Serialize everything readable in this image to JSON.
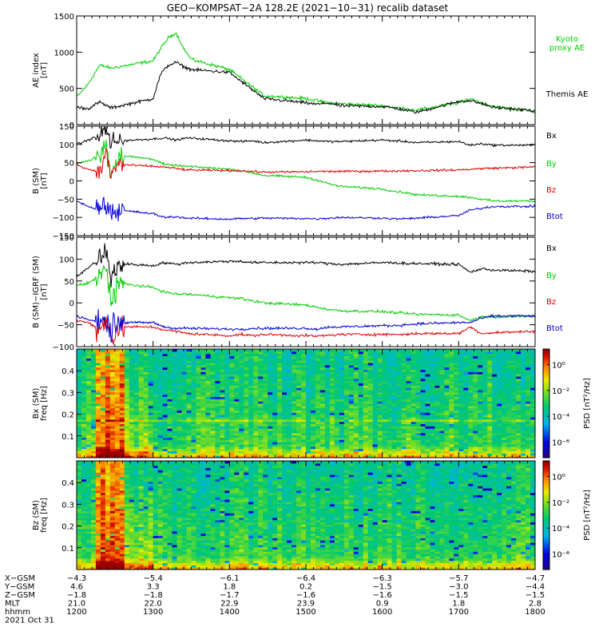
{
  "title": "GEO−KOMPSAT−2A 128.2E (2021−10−31) recalib dataset",
  "colors": {
    "black": "#000000",
    "green": "#00cc00",
    "red": "#dd0000",
    "blue": "#0000cc",
    "kyoto": "#22dd22"
  },
  "chart_data": [
    {
      "type": "line",
      "panel": "ae",
      "ylabel": "AE index [nT]",
      "ylim": [
        0,
        1500
      ],
      "yticks": [
        0,
        500,
        1000,
        1500
      ],
      "x": [
        1200,
        1215,
        1230,
        1245,
        1300,
        1310,
        1320,
        1330,
        1340,
        1350,
        1400,
        1415,
        1430,
        1445,
        1500,
        1515,
        1530,
        1545,
        1600,
        1615,
        1630,
        1645,
        1700,
        1715,
        1730,
        1745,
        1800
      ],
      "series": [
        {
          "name": "Kyoto proxy AE",
          "color": "#00cc00",
          "label_lines": [
            "Kyoto",
            "proxy AE"
          ],
          "values": [
            380,
            560,
            820,
            780,
            880,
            1050,
            1200,
            1270,
            1050,
            900,
            760,
            640,
            520,
            400,
            360,
            330,
            300,
            290,
            260,
            240,
            220,
            200,
            300,
            360,
            300,
            250,
            180
          ]
        },
        {
          "name": "Themis AE",
          "color": "#000000",
          "label_lines": [
            "Themis AE"
          ],
          "values": [
            240,
            220,
            310,
            230,
            360,
            700,
            820,
            860,
            800,
            760,
            720,
            600,
            480,
            360,
            300,
            280,
            300,
            260,
            250,
            230,
            200,
            170,
            320,
            330,
            290,
            240,
            190
          ]
        }
      ]
    },
    {
      "type": "line",
      "panel": "b-sm",
      "ylabel": "B (SM) [nT]",
      "ylim": [
        -150,
        150
      ],
      "yticks": [
        -150,
        -100,
        -50,
        0,
        50,
        100,
        150
      ],
      "x": [
        1200,
        1215,
        1230,
        1238,
        1245,
        1255,
        1300,
        1315,
        1330,
        1345,
        1400,
        1415,
        1430,
        1445,
        1500,
        1515,
        1530,
        1545,
        1600,
        1615,
        1630,
        1645,
        1700,
        1715,
        1730,
        1745,
        1800
      ],
      "series": [
        {
          "name": "Bx",
          "color": "#000000",
          "values": [
            100,
            112,
            125,
            140,
            95,
            110,
            115,
            118,
            112,
            118,
            110,
            108,
            110,
            105,
            112,
            110,
            108,
            108,
            112,
            110,
            108,
            105,
            108,
            98,
            102,
            98,
            98
          ]
        },
        {
          "name": "By",
          "color": "#00cc00",
          "values": [
            50,
            55,
            70,
            95,
            25,
            70,
            60,
            45,
            42,
            40,
            32,
            28,
            22,
            15,
            10,
            2,
            -8,
            -15,
            -22,
            -28,
            -32,
            -38,
            -42,
            -45,
            -50,
            -55,
            -55
          ]
        },
        {
          "name": "Bz",
          "color": "#dd0000",
          "values": [
            45,
            32,
            25,
            70,
            15,
            45,
            40,
            38,
            34,
            30,
            28,
            28,
            26,
            24,
            25,
            26,
            26,
            26,
            27,
            27,
            28,
            28,
            30,
            32,
            34,
            35,
            38
          ]
        },
        {
          "name": "Btot",
          "color": "#0000cc",
          "values": [
            -55,
            -70,
            -80,
            -55,
            -85,
            -80,
            -90,
            -100,
            -98,
            -102,
            -105,
            -103,
            -103,
            -102,
            -103,
            -104,
            -102,
            -100,
            -102,
            -104,
            -104,
            -102,
            -95,
            -80,
            -75,
            -70,
            -70
          ]
        }
      ],
      "legend_labels": [
        "Bx",
        "By",
        "Bz",
        "Btot"
      ]
    },
    {
      "type": "line",
      "panel": "b-sm-igrf",
      "ylabel": "B (SM)−IGRF (SM) [nT]",
      "ylim": [
        -100,
        150
      ],
      "yticks": [
        -100,
        -50,
        0,
        50,
        100,
        150
      ],
      "x": [
        1200,
        1215,
        1230,
        1238,
        1245,
        1255,
        1300,
        1315,
        1330,
        1345,
        1400,
        1415,
        1430,
        1445,
        1500,
        1515,
        1530,
        1545,
        1600,
        1615,
        1630,
        1645,
        1700,
        1715,
        1730,
        1745,
        1800
      ],
      "series": [
        {
          "name": "Bx",
          "color": "#000000",
          "values": [
            60,
            80,
            100,
            120,
            55,
            90,
            85,
            92,
            88,
            92,
            95,
            95,
            92,
            92,
            92,
            92,
            90,
            88,
            92,
            92,
            90,
            90,
            88,
            70,
            78,
            75,
            72
          ]
        },
        {
          "name": "By",
          "color": "#00cc00",
          "values": [
            40,
            45,
            60,
            80,
            10,
            45,
            35,
            25,
            20,
            20,
            12,
            10,
            5,
            0,
            -5,
            -10,
            -15,
            -18,
            -20,
            -22,
            -24,
            -26,
            -28,
            -40,
            -32,
            -32,
            -30
          ]
        },
        {
          "name": "Bz",
          "color": "#dd0000",
          "values": [
            -40,
            -45,
            -60,
            -40,
            -80,
            -55,
            -55,
            -62,
            -65,
            -70,
            -75,
            -72,
            -75,
            -72,
            -75,
            -76,
            -74,
            -72,
            -72,
            -72,
            -72,
            -70,
            -70,
            -55,
            -70,
            -68,
            -65
          ]
        },
        {
          "name": "Btot",
          "color": "#0000cc",
          "values": [
            -30,
            -38,
            -45,
            -30,
            -60,
            -45,
            -45,
            -55,
            -58,
            -58,
            -60,
            -60,
            -58,
            -58,
            -58,
            -60,
            -55,
            -55,
            -52,
            -52,
            -50,
            -48,
            -45,
            -45,
            -35,
            -30,
            -30
          ]
        }
      ],
      "legend_labels": [
        "Bx",
        "By",
        "Bz",
        "Btot"
      ]
    },
    {
      "type": "heatmap",
      "panel": "bx-spec",
      "ylabel": "Bx (SM) freq [Hz]",
      "ylim": [
        0,
        0.5
      ],
      "yticks": [
        0.1,
        0.2,
        0.3,
        0.4
      ],
      "colorbar_label": "PSD [nT²/Hz]",
      "colorbar_ticks": [
        "10⁰",
        "10⁻²",
        "10⁻⁴",
        "10⁻⁶"
      ],
      "colorbar_exponents": [
        0,
        -2,
        -4,
        -6
      ]
    },
    {
      "type": "heatmap",
      "panel": "bz-spec",
      "ylabel": "Bz (SM) freq [Hz]",
      "ylim": [
        0,
        0.5
      ],
      "yticks": [
        0.1,
        0.2,
        0.3,
        0.4
      ],
      "colorbar_label": "PSD [nT²/Hz]",
      "colorbar_ticks": [
        "10⁰",
        "10⁻²",
        "10⁻⁴",
        "10⁻⁶"
      ],
      "colorbar_exponents": [
        0,
        -2,
        -4,
        -6
      ]
    }
  ],
  "x_axis": {
    "xlim": [
      1200,
      1800
    ],
    "major_ticks": [
      1200,
      1300,
      1400,
      1500,
      1600,
      1700,
      1800
    ],
    "rows": [
      {
        "label": "X−GSM",
        "values": [
          "−4.3",
          "−5.4",
          "−6.1",
          "−6.4",
          "−6.3",
          "−5.7",
          "−4.7"
        ]
      },
      {
        "label": "Y−GSM",
        "values": [
          "4.6",
          "3.3",
          "1.8",
          "0.2",
          "−1.5",
          "−3.0",
          "−4.4"
        ]
      },
      {
        "label": "Z−GSM",
        "values": [
          "−1.8",
          "−1.8",
          "−1.7",
          "−1.6",
          "−1.6",
          "−1.5",
          "−1.5"
        ]
      },
      {
        "label": "MLT",
        "values": [
          "21.0",
          "22.0",
          "22.9",
          "23.9",
          "0.9",
          "1.8",
          "2.8"
        ]
      },
      {
        "label": "hhmm",
        "values": [
          "1200",
          "1300",
          "1400",
          "1500",
          "1600",
          "1700",
          "1800"
        ]
      }
    ],
    "date": "2021 Oct 31"
  }
}
